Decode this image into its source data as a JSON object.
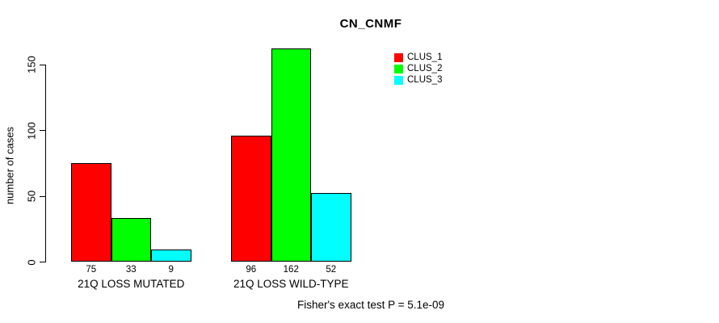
{
  "chart_data": {
    "type": "bar",
    "title": "CN_CNMF",
    "ylabel": "number of cases",
    "xlabel": "",
    "categories": [
      "21Q LOSS MUTATED",
      "21Q LOSS WILD-TYPE"
    ],
    "series": [
      {
        "name": "CLUS_1",
        "color": "#FF0000",
        "values": [
          75,
          96
        ]
      },
      {
        "name": "CLUS_2",
        "color": "#00FF00",
        "values": [
          33,
          162
        ]
      },
      {
        "name": "CLUS_3",
        "color": "#00FFFF",
        "values": [
          9,
          52
        ]
      }
    ],
    "yticks": [
      0,
      50,
      100,
      150
    ],
    "ylim": [
      0,
      170
    ],
    "grid": false,
    "bar_border_color": "#000000",
    "legend": {
      "position": "top-right",
      "entries": [
        {
          "label": "CLUS_1",
          "color": "#FF0000"
        },
        {
          "label": "CLUS_2",
          "color": "#00FF00"
        },
        {
          "label": "CLUS_3",
          "color": "#00FFFF"
        }
      ]
    },
    "annotation": "Fisher's exact test P = 5.1e-09"
  }
}
